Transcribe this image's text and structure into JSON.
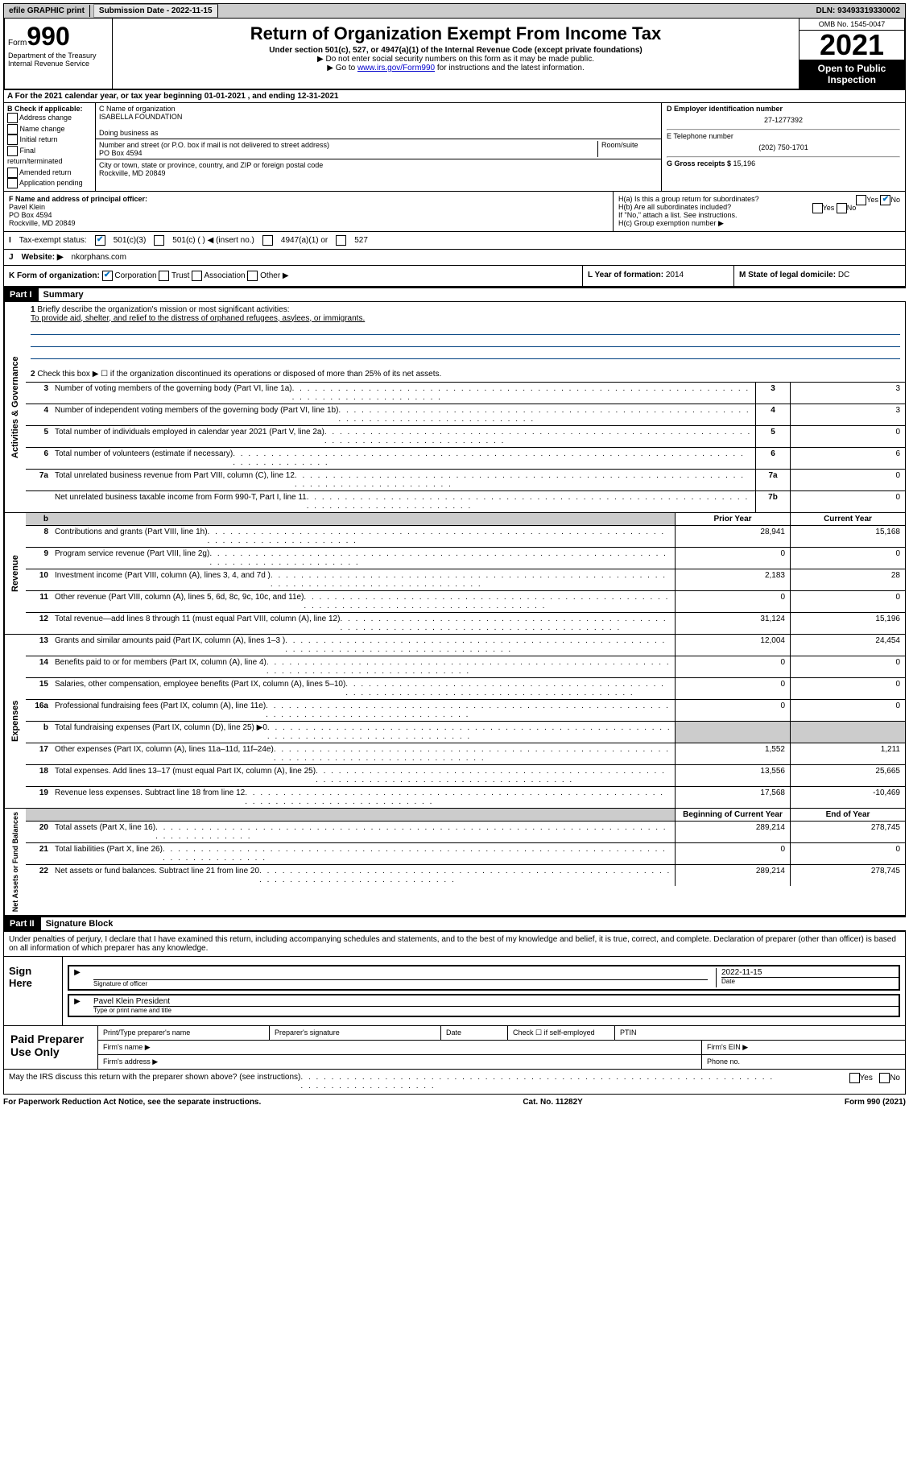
{
  "top": {
    "efile": "efile GRAPHIC print",
    "submission_label": "Submission Date - 2022-11-15",
    "dln": "DLN: 93493319330002"
  },
  "header": {
    "form_label": "Form",
    "form_number": "990",
    "title": "Return of Organization Exempt From Income Tax",
    "subtitle": "Under section 501(c), 527, or 4947(a)(1) of the Internal Revenue Code (except private foundations)",
    "note1": "▶ Do not enter social security numbers on this form as it may be made public.",
    "note2_pre": "▶ Go to ",
    "note2_link": "www.irs.gov/Form990",
    "note2_post": " for instructions and the latest information.",
    "dept": "Department of the Treasury\nInternal Revenue Service",
    "omb": "OMB No. 1545-0047",
    "year": "2021",
    "open_public": "Open to Public Inspection"
  },
  "line_a": "A  For the 2021 calendar year, or tax year beginning 01-01-2021   , and ending 12-31-2021",
  "section_b": {
    "label": "B Check if applicable:",
    "items": [
      "Address change",
      "Name change",
      "Initial return",
      "Final return/terminated",
      "Amended return",
      "Application pending"
    ]
  },
  "section_c": {
    "name_label": "C Name of organization",
    "name": "ISABELLA FOUNDATION",
    "dba_label": "Doing business as",
    "addr_label": "Number and street (or P.O. box if mail is not delivered to street address)",
    "room_label": "Room/suite",
    "addr": "PO Box 4594",
    "city_label": "City or town, state or province, country, and ZIP or foreign postal code",
    "city": "Rockville, MD  20849"
  },
  "section_d": {
    "ein_label": "D Employer identification number",
    "ein": "27-1277392",
    "tel_label": "E Telephone number",
    "tel": "(202) 750-1701",
    "gross_label": "G Gross receipts $ ",
    "gross": "15,196"
  },
  "section_f": {
    "label": "F  Name and address of principal officer:",
    "name": "Pavel Klein",
    "addr1": "PO Box 4594",
    "addr2": "Rockville, MD  20849"
  },
  "section_h": {
    "ha": "H(a)  Is this a group return for subordinates?",
    "hb": "H(b)  Are all subordinates included?",
    "hb_note": "If \"No,\" attach a list. See instructions.",
    "hc": "H(c)  Group exemption number ▶",
    "yes": "Yes",
    "no": "No"
  },
  "tax_status": {
    "label_i": "I",
    "label": "Tax-exempt status:",
    "opt1": "501(c)(3)",
    "opt2": "501(c) (  ) ◀ (insert no.)",
    "opt3": "4947(a)(1) or",
    "opt4": "527"
  },
  "website": {
    "label_j": "J",
    "label": "Website: ▶",
    "url": "nkorphans.com"
  },
  "section_k": {
    "label": "K Form of organization:",
    "opts": [
      "Corporation",
      "Trust",
      "Association",
      "Other ▶"
    ],
    "year_label": "L Year of formation: ",
    "year": "2014",
    "state_label": "M State of legal domicile: ",
    "state": "DC"
  },
  "part1": {
    "header": "Part I",
    "title": "Summary",
    "q1_label": "1",
    "q1": "Briefly describe the organization's mission or most significant activities:",
    "q1_text": "To provide aid, shelter, and relief to the distress of orphaned refugees, asylees, or immigrants.",
    "q2": "Check this box ▶ ☐  if the organization discontinued its operations or disposed of more than 25% of its net assets.",
    "sections": {
      "activities": "Activities & Governance",
      "revenue": "Revenue",
      "expenses": "Expenses",
      "netassets": "Net Assets or Fund Balances"
    },
    "lines_gov": [
      {
        "n": "3",
        "t": "Number of voting members of the governing body (Part VI, line 1a)",
        "b": "3",
        "v": "3"
      },
      {
        "n": "4",
        "t": "Number of independent voting members of the governing body (Part VI, line 1b)",
        "b": "4",
        "v": "3"
      },
      {
        "n": "5",
        "t": "Total number of individuals employed in calendar year 2021 (Part V, line 2a)",
        "b": "5",
        "v": "0"
      },
      {
        "n": "6",
        "t": "Total number of volunteers (estimate if necessary)",
        "b": "6",
        "v": "6"
      },
      {
        "n": "7a",
        "t": "Total unrelated business revenue from Part VIII, column (C), line 12",
        "b": "7a",
        "v": "0"
      },
      {
        "n": "",
        "t": "Net unrelated business taxable income from Form 990-T, Part I, line 11",
        "b": "7b",
        "v": "0"
      }
    ],
    "col_headers": {
      "prior": "Prior Year",
      "current": "Current Year",
      "begin": "Beginning of Current Year",
      "end": "End of Year"
    },
    "lines_rev": [
      {
        "n": "8",
        "t": "Contributions and grants (Part VIII, line 1h)",
        "p": "28,941",
        "c": "15,168"
      },
      {
        "n": "9",
        "t": "Program service revenue (Part VIII, line 2g)",
        "p": "0",
        "c": "0"
      },
      {
        "n": "10",
        "t": "Investment income (Part VIII, column (A), lines 3, 4, and 7d )",
        "p": "2,183",
        "c": "28"
      },
      {
        "n": "11",
        "t": "Other revenue (Part VIII, column (A), lines 5, 6d, 8c, 9c, 10c, and 11e)",
        "p": "0",
        "c": "0"
      },
      {
        "n": "12",
        "t": "Total revenue—add lines 8 through 11 (must equal Part VIII, column (A), line 12)",
        "p": "31,124",
        "c": "15,196"
      }
    ],
    "lines_exp": [
      {
        "n": "13",
        "t": "Grants and similar amounts paid (Part IX, column (A), lines 1–3 )",
        "p": "12,004",
        "c": "24,454"
      },
      {
        "n": "14",
        "t": "Benefits paid to or for members (Part IX, column (A), line 4)",
        "p": "0",
        "c": "0"
      },
      {
        "n": "15",
        "t": "Salaries, other compensation, employee benefits (Part IX, column (A), lines 5–10)",
        "p": "0",
        "c": "0"
      },
      {
        "n": "16a",
        "t": "Professional fundraising fees (Part IX, column (A), line 11e)",
        "p": "0",
        "c": "0"
      },
      {
        "n": "b",
        "t": "Total fundraising expenses (Part IX, column (D), line 25) ▶0",
        "p": "",
        "c": "",
        "shade": true
      },
      {
        "n": "17",
        "t": "Other expenses (Part IX, column (A), lines 11a–11d, 11f–24e)",
        "p": "1,552",
        "c": "1,211"
      },
      {
        "n": "18",
        "t": "Total expenses. Add lines 13–17 (must equal Part IX, column (A), line 25)",
        "p": "13,556",
        "c": "25,665"
      },
      {
        "n": "19",
        "t": "Revenue less expenses. Subtract line 18 from line 12",
        "p": "17,568",
        "c": "-10,469"
      }
    ],
    "lines_net": [
      {
        "n": "20",
        "t": "Total assets (Part X, line 16)",
        "p": "289,214",
        "c": "278,745"
      },
      {
        "n": "21",
        "t": "Total liabilities (Part X, line 26)",
        "p": "0",
        "c": "0"
      },
      {
        "n": "22",
        "t": "Net assets or fund balances. Subtract line 21 from line 20",
        "p": "289,214",
        "c": "278,745"
      }
    ]
  },
  "part2": {
    "header": "Part II",
    "title": "Signature Block",
    "penalty": "Under penalties of perjury, I declare that I have examined this return, including accompanying schedules and statements, and to the best of my knowledge and belief, it is true, correct, and complete. Declaration of preparer (other than officer) is based on all information of which preparer has any knowledge.",
    "sign_here": "Sign Here",
    "sig_officer": "Signature of officer",
    "date": "Date",
    "date_val": "2022-11-15",
    "name_title_val": "Pavel Klein  President",
    "name_title": "Type or print name and title",
    "paid": "Paid Preparer Use Only",
    "prep_name": "Print/Type preparer's name",
    "prep_sig": "Preparer's signature",
    "prep_date": "Date",
    "check_self": "Check ☐ if self-employed",
    "ptin": "PTIN",
    "firm_name": "Firm's name  ▶",
    "firm_ein": "Firm's EIN ▶",
    "firm_addr": "Firm's address ▶",
    "phone": "Phone no.",
    "discuss": "May the IRS discuss this return with the preparer shown above? (see instructions)"
  },
  "footer": {
    "pra": "For Paperwork Reduction Act Notice, see the separate instructions.",
    "cat": "Cat. No. 11282Y",
    "form": "Form 990 (2021)"
  }
}
